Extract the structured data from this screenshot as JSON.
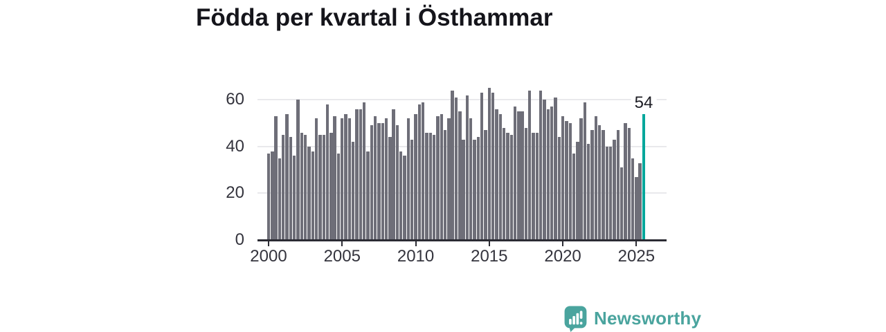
{
  "title": "Födda per kvartal i Östhammar",
  "annotation": {
    "value": "54"
  },
  "logo": {
    "text": "Newsworthy",
    "color": "#4aa49e"
  },
  "colors": {
    "bar": "#6e6e78",
    "highlight": "#00a79b",
    "gridline": "#e9e9ec",
    "axis": "#2b2b33",
    "axis_text": "#34343d",
    "title_text": "#15151b",
    "logo_teal": "#4aa49e"
  },
  "chart_data": {
    "type": "bar",
    "title": "Födda per kvartal i Östhammar",
    "ylabel": "",
    "xlabel": "",
    "grid": "horizontal",
    "legend": "none",
    "ylim": [
      0,
      68
    ],
    "y_ticks": [
      0,
      20,
      40,
      60
    ],
    "x_tick_labels": [
      "2000",
      "2005",
      "2010",
      "2015",
      "2020",
      "2025"
    ],
    "x_tick_indices": [
      0,
      20,
      40,
      60,
      80,
      100
    ],
    "highlight_index": 102,
    "highlight_label": "54",
    "categories": [
      "2000 K1",
      "2000 K2",
      "2000 K3",
      "2000 K4",
      "2001 K1",
      "2001 K2",
      "2001 K3",
      "2001 K4",
      "2002 K1",
      "2002 K2",
      "2002 K3",
      "2002 K4",
      "2003 K1",
      "2003 K2",
      "2003 K3",
      "2003 K4",
      "2004 K1",
      "2004 K2",
      "2004 K3",
      "2004 K4",
      "2005 K1",
      "2005 K2",
      "2005 K3",
      "2005 K4",
      "2006 K1",
      "2006 K2",
      "2006 K3",
      "2006 K4",
      "2007 K1",
      "2007 K2",
      "2007 K3",
      "2007 K4",
      "2008 K1",
      "2008 K2",
      "2008 K3",
      "2008 K4",
      "2009 K1",
      "2009 K2",
      "2009 K3",
      "2009 K4",
      "2010 K1",
      "2010 K2",
      "2010 K3",
      "2010 K4",
      "2011 K1",
      "2011 K2",
      "2011 K3",
      "2011 K4",
      "2012 K1",
      "2012 K2",
      "2012 K3",
      "2012 K4",
      "2013 K1",
      "2013 K2",
      "2013 K3",
      "2013 K4",
      "2014 K1",
      "2014 K2",
      "2014 K3",
      "2014 K4",
      "2015 K1",
      "2015 K2",
      "2015 K3",
      "2015 K4",
      "2016 K1",
      "2016 K2",
      "2016 K3",
      "2016 K4",
      "2017 K1",
      "2017 K2",
      "2017 K3",
      "2017 K4",
      "2018 K1",
      "2018 K2",
      "2018 K3",
      "2018 K4",
      "2019 K1",
      "2019 K2",
      "2019 K3",
      "2019 K4",
      "2020 K1",
      "2020 K2",
      "2020 K3",
      "2020 K4",
      "2021 K1",
      "2021 K2",
      "2021 K3",
      "2021 K4",
      "2022 K1",
      "2022 K2",
      "2022 K3",
      "2022 K4",
      "2023 K1",
      "2023 K2",
      "2023 K3",
      "2023 K4",
      "2024 K1",
      "2024 K2",
      "2024 K3",
      "2024 K4",
      "2025 K1",
      "2025 K2",
      "2025 K3"
    ],
    "values": [
      37,
      38,
      53,
      35,
      45,
      54,
      44,
      36,
      60,
      46,
      45,
      40,
      38,
      52,
      45,
      45,
      58,
      46,
      53,
      37,
      52,
      54,
      52,
      42,
      56,
      56,
      59,
      38,
      49,
      53,
      50,
      50,
      52,
      44,
      56,
      49,
      38,
      36,
      52,
      43,
      54,
      58,
      59,
      46,
      46,
      45,
      53,
      54,
      47,
      52,
      64,
      61,
      55,
      43,
      62,
      52,
      43,
      44,
      63,
      47,
      65,
      63,
      56,
      54,
      48,
      46,
      45,
      57,
      55,
      55,
      48,
      64,
      46,
      46,
      64,
      60,
      56,
      57,
      61,
      44,
      53,
      51,
      50,
      37,
      42,
      52,
      59,
      41,
      47,
      53,
      49,
      47,
      40,
      40,
      43,
      47,
      31,
      50,
      48,
      35,
      27,
      33,
      54
    ]
  }
}
